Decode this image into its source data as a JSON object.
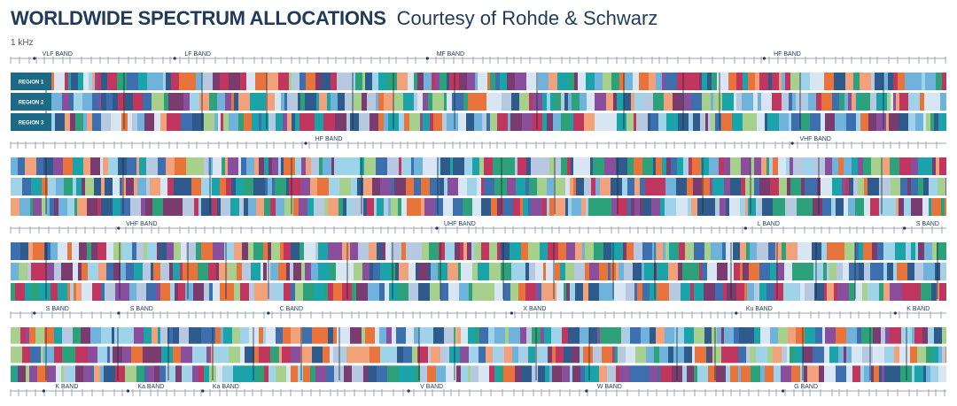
{
  "header": {
    "title": "WORLDWIDE SPECTRUM ALLOCATIONS",
    "subtitle": "Courtesy of Rohde & Schwarz",
    "start_frequency": "1 kHz"
  },
  "region_labels": [
    "REGION 1",
    "REGION 2",
    "REGION 3"
  ],
  "strips": [
    {
      "bands": [
        {
          "label": "VLF BAND",
          "pos": 0.05
        },
        {
          "label": "LF BAND",
          "pos": 0.2
        },
        {
          "label": "MF BAND",
          "pos": 0.47
        },
        {
          "label": "HF BAND",
          "pos": 0.83
        }
      ]
    },
    {
      "bands": [
        {
          "label": "HF BAND",
          "pos": 0.34
        },
        {
          "label": "VHF BAND",
          "pos": 0.86
        }
      ]
    },
    {
      "bands": [
        {
          "label": "VHF BAND",
          "pos": 0.14
        },
        {
          "label": "UHF BAND",
          "pos": 0.48
        },
        {
          "label": "L BAND",
          "pos": 0.81
        },
        {
          "label": "S BAND",
          "pos": 0.98
        }
      ]
    },
    {
      "bands": [
        {
          "label": "S BAND",
          "pos": 0.05
        },
        {
          "label": "S BAND",
          "pos": 0.14
        },
        {
          "label": "C BAND",
          "pos": 0.3
        },
        {
          "label": "X BAND",
          "pos": 0.56
        },
        {
          "label": "Ku BAND",
          "pos": 0.8
        },
        {
          "label": "K BAND",
          "pos": 0.97
        }
      ]
    },
    {
      "bands": [
        {
          "label": "K BAND",
          "pos": 0.06
        },
        {
          "label": "Ka BAND",
          "pos": 0.15
        },
        {
          "label": "Ka BAND",
          "pos": 0.23
        },
        {
          "label": "V BAND",
          "pos": 0.45
        },
        {
          "label": "W BAND",
          "pos": 0.64
        },
        {
          "label": "G BAND",
          "pos": 0.85
        }
      ]
    }
  ],
  "colors": {
    "title": "#1f3a5a",
    "palette": [
      "#2e5a8c",
      "#6fb3dc",
      "#9fd3ea",
      "#1aa3a8",
      "#2ca17a",
      "#8a4f9c",
      "#c0365f",
      "#e8743b",
      "#f2a27a",
      "#b7c9e0",
      "#3d6fae",
      "#d7e6f2",
      "#7a3b6e",
      "#a7d08c"
    ],
    "region_label_bg": [
      "#1c6a86",
      "#1c6a86",
      "#1c6a86"
    ]
  }
}
